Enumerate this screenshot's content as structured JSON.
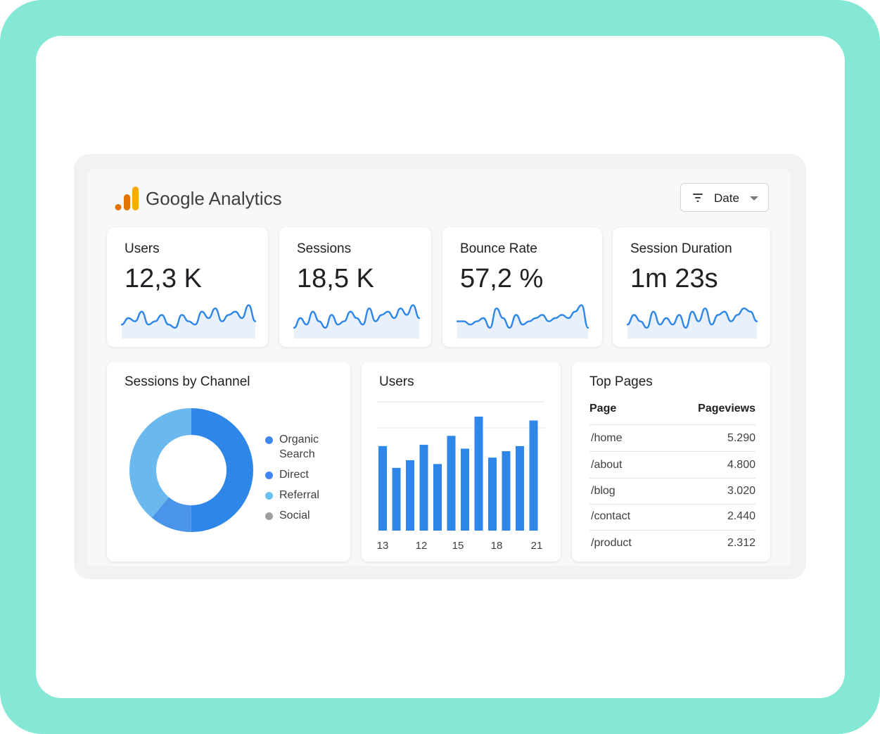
{
  "app": {
    "brand": "Google Analytics",
    "logo_icon": "google-analytics-bars-icon",
    "logo_colors": [
      "#f9ab00",
      "#e37400",
      "#e37400"
    ]
  },
  "filter": {
    "label": "Date",
    "icon": "filter-lines-icon",
    "caret_icon": "caret-down-icon"
  },
  "kpis": [
    {
      "label": "Users",
      "value": "12,3 K"
    },
    {
      "label": "Sessions",
      "value": "18,5 K"
    },
    {
      "label": "Bounce Rate",
      "value": "57,2 %"
    },
    {
      "label": "Session Duration",
      "value": "1m 23s"
    }
  ],
  "sessions_by_channel": {
    "title": "Sessions by Channel",
    "legend": [
      {
        "label": "Organic Search",
        "color": "#4285f4"
      },
      {
        "label": "Direct",
        "color": "#4285f4"
      },
      {
        "label": "Referral",
        "color": "#6ac0f0"
      },
      {
        "label": "Social",
        "color": "#9e9e9e"
      }
    ]
  },
  "users_chart": {
    "title": "Users"
  },
  "top_pages": {
    "title": "Top Pages",
    "col_page": "Page",
    "col_views": "Pageviews",
    "rows": [
      {
        "page": "/home",
        "views": "5.290"
      },
      {
        "page": "/about",
        "views": "4.800"
      },
      {
        "page": "/blog",
        "views": "3.020"
      },
      {
        "page": "/contact",
        "views": "2.440"
      },
      {
        "page": "/product",
        "views": "2.312"
      }
    ]
  },
  "colors": {
    "accent": "#2e86e8",
    "accent_light": "#6ab8ee",
    "spark_fill": "#e8f1fb"
  },
  "chart_data": [
    {
      "type": "line",
      "series": [
        {
          "values": [
            3,
            5,
            4,
            7,
            3,
            4,
            6,
            3,
            2,
            6,
            4,
            3,
            7,
            5,
            8,
            4,
            6,
            7,
            5,
            9,
            4
          ]
        }
      ]
    },
    {
      "type": "line",
      "series": [
        {
          "values": [
            2,
            5,
            3,
            7,
            4,
            2,
            6,
            3,
            4,
            7,
            5,
            3,
            8,
            4,
            6,
            7,
            5,
            8,
            6,
            9,
            5
          ]
        }
      ]
    },
    {
      "type": "line",
      "series": [
        {
          "values": [
            4,
            4,
            3,
            4,
            5,
            2,
            8,
            5,
            2,
            6,
            3,
            4,
            5,
            6,
            4,
            5,
            6,
            5,
            7,
            9,
            2
          ]
        }
      ]
    },
    {
      "type": "line",
      "series": [
        {
          "values": [
            3,
            6,
            4,
            2,
            7,
            3,
            5,
            3,
            6,
            2,
            7,
            4,
            8,
            3,
            6,
            7,
            4,
            6,
            8,
            7,
            4
          ]
        }
      ]
    },
    {
      "type": "pie",
      "donut": true,
      "slices": [
        {
          "label": "Organic Search",
          "value": 50,
          "color": "#2e86e8"
        },
        {
          "label": "Direct",
          "value": 11,
          "color": "#4a94ea"
        },
        {
          "label": "Referral",
          "value": 39,
          "color": "#6ab8ee"
        }
      ]
    },
    {
      "type": "bar",
      "tick_labels": [
        "13",
        "12",
        "15",
        "18",
        "21"
      ],
      "values": [
        6.6,
        4.9,
        5.5,
        6.7,
        5.2,
        7.4,
        6.4,
        8.9,
        5.7,
        6.2,
        6.6,
        8.6
      ],
      "ylim": [
        0,
        10
      ],
      "grid": true
    }
  ]
}
